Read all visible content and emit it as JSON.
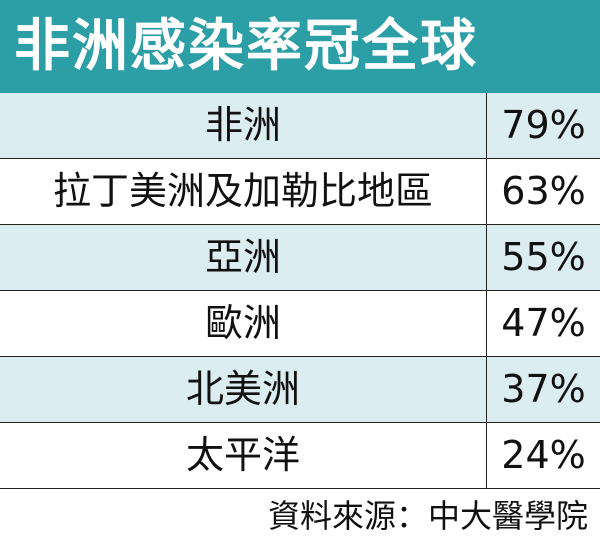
{
  "header": {
    "title": "非洲感染率冠全球"
  },
  "table": {
    "rows": [
      [
        "非洲",
        "79%"
      ],
      [
        "拉丁美洲及加勒比地區",
        "63%"
      ],
      [
        "亞洲",
        "55%"
      ],
      [
        "歐洲",
        "47%"
      ],
      [
        "北美洲",
        "37%"
      ],
      [
        "太平洋",
        "24%"
      ]
    ]
  },
  "footer": {
    "source": "資料來源：中大醫學院"
  }
}
